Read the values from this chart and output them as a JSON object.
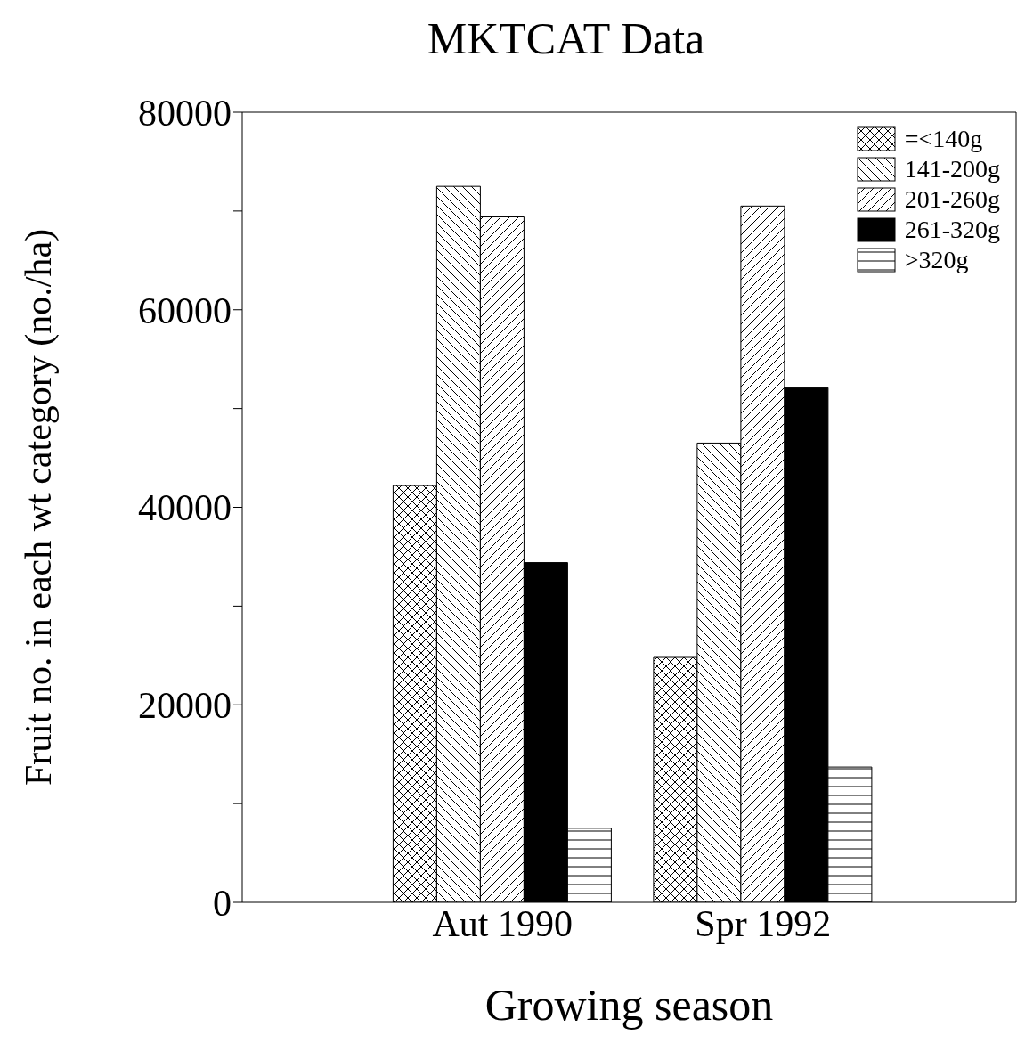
{
  "chart_data": {
    "type": "bar",
    "title": "MKTCAT Data",
    "xlabel": "Growing season",
    "ylabel": "Fruit no. in each wt category (no./ha)",
    "categories": [
      "Aut 1990",
      "Spr 1992"
    ],
    "series": [
      {
        "name": "=<140g",
        "color": "#000000",
        "values": [
          42200,
          24800
        ]
      },
      {
        "name": "141-200g",
        "color": "#000000",
        "values": [
          72500,
          46500
        ]
      },
      {
        "name": "201-260g",
        "color": "#000000",
        "values": [
          69400,
          70500
        ]
      },
      {
        "name": "261-320g",
        "color": "#000000",
        "values": [
          34400,
          52100
        ]
      },
      {
        "name": ">320g",
        "color": "#000000",
        "values": [
          7500,
          13700
        ]
      }
    ],
    "ylim": [
      0,
      80000
    ],
    "yticks": [
      0,
      {
        "value": 10000,
        "label": null
      },
      20000,
      {
        "value": 30000,
        "label": null
      },
      40000,
      {
        "value": 50000,
        "label": null
      },
      60000,
      {
        "value": 70000,
        "label": null
      },
      80000
    ],
    "legend": "top right",
    "grid": false
  }
}
